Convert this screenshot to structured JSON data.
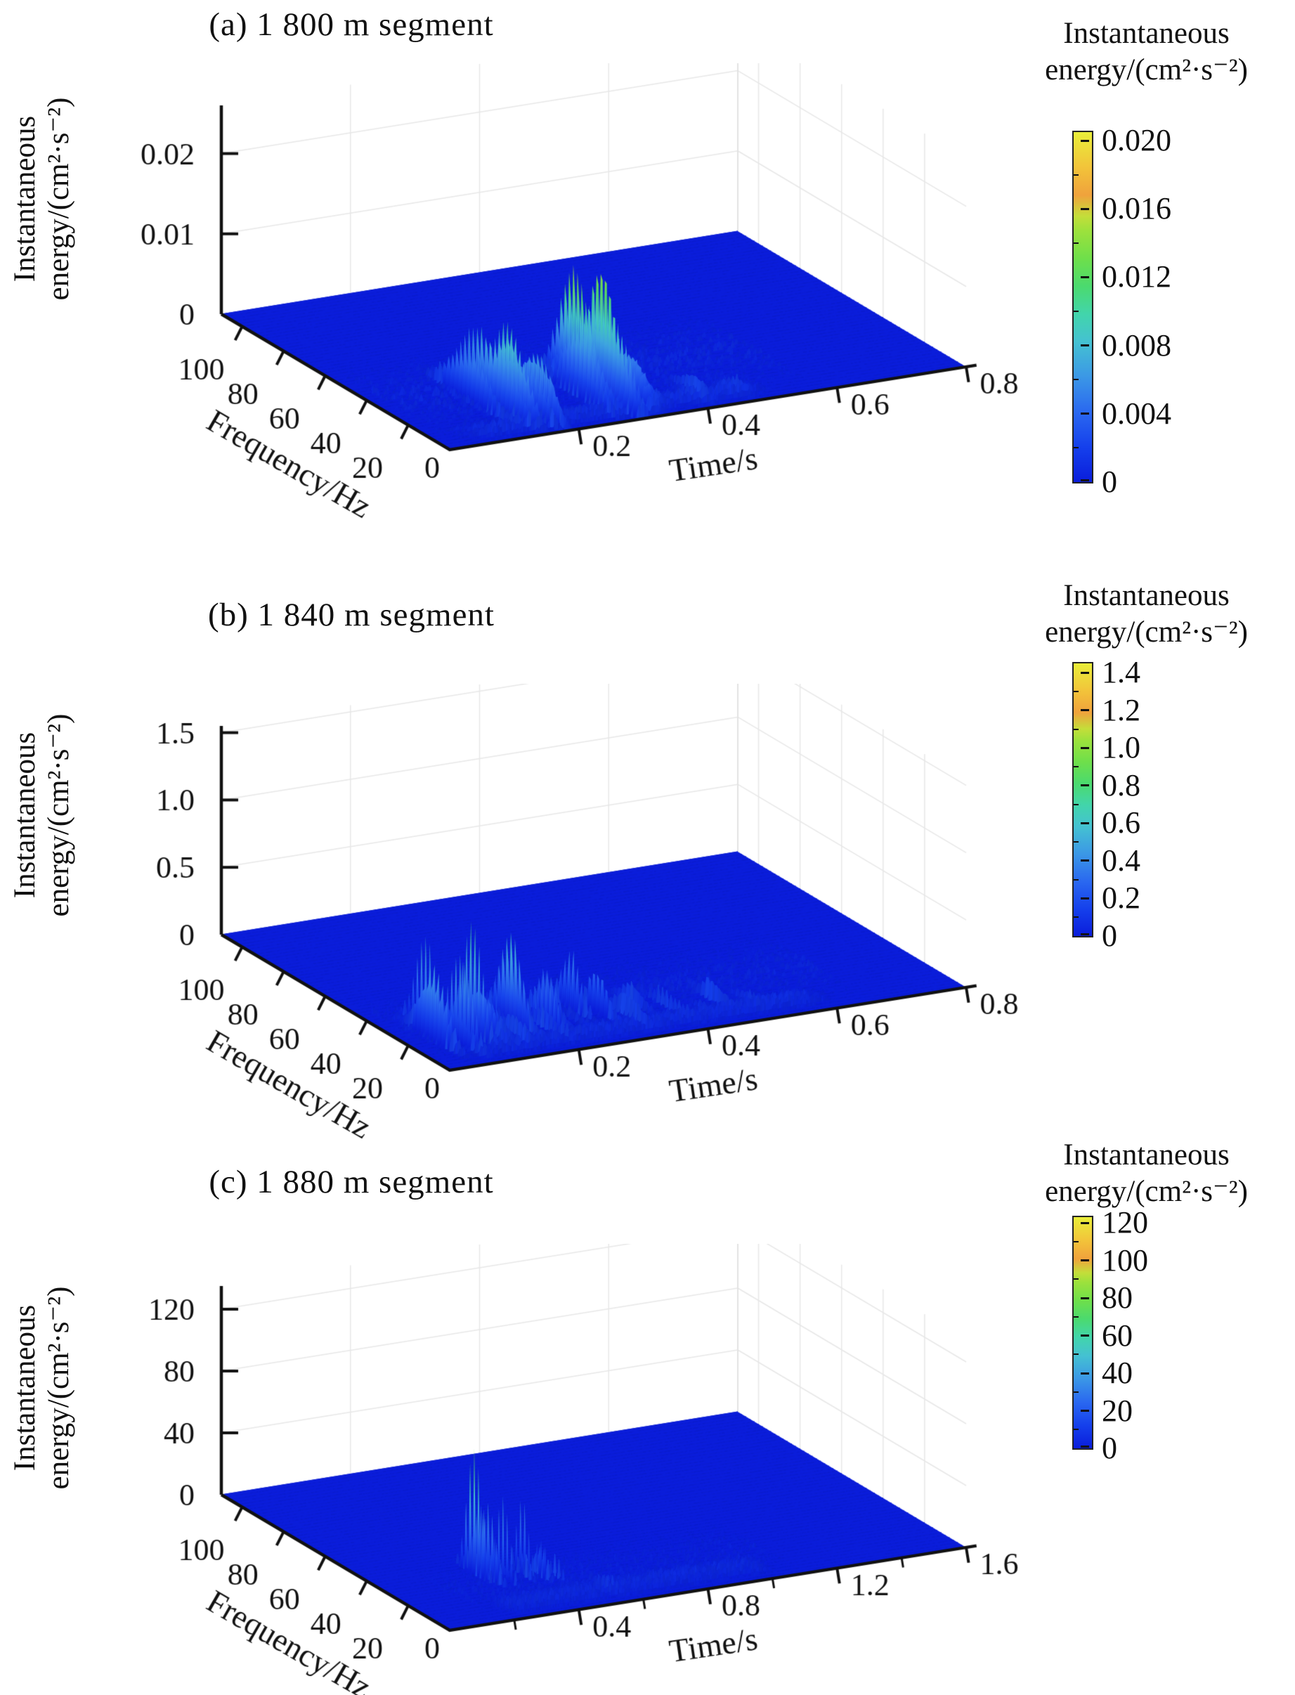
{
  "background_color": "#ffffff",
  "text_color": "#111111",
  "colormap": [
    [
      0,
      "#0a1ddb"
    ],
    [
      0.1,
      "#1540ec"
    ],
    [
      0.2,
      "#2a68f0"
    ],
    [
      0.3,
      "#3b97e6"
    ],
    [
      0.4,
      "#44c1d2"
    ],
    [
      0.48,
      "#42d5ab"
    ],
    [
      0.56,
      "#4bda6e"
    ],
    [
      0.64,
      "#6fdf4a"
    ],
    [
      0.72,
      "#9ee13c"
    ],
    [
      0.76,
      "#c4de3a"
    ],
    [
      0.82,
      "#f0a23c"
    ],
    [
      0.9,
      "#f2c43a"
    ],
    [
      1.0,
      "#e9ee39"
    ]
  ],
  "chart_data": [
    {
      "type": "surface3d",
      "title": "(a) 1 800 m segment",
      "xlabel": "Time/s",
      "ylabel": "Frequency/Hz",
      "zlabel_lines": [
        "Instantaneous",
        "energy/(cm²·s⁻²)"
      ],
      "x_max": 0.8,
      "y_max": 110,
      "z_axis_max": 0.026,
      "x_ticks": [
        {
          "v": 0,
          "label": "0"
        },
        {
          "v": 0.2,
          "label": "0.2"
        },
        {
          "v": 0.4,
          "label": "0.4"
        },
        {
          "v": 0.6,
          "label": "0.6"
        },
        {
          "v": 0.8,
          "label": "0.8"
        }
      ],
      "x_minor_step": 0,
      "y_ticks": [
        {
          "v": 20,
          "label": "20"
        },
        {
          "v": 40,
          "label": "40"
        },
        {
          "v": 60,
          "label": "60"
        },
        {
          "v": 80,
          "label": "80"
        },
        {
          "v": 100,
          "label": "100"
        }
      ],
      "z_ticks": [
        {
          "v": 0,
          "label": "0"
        },
        {
          "v": 0.01,
          "label": "0.01"
        },
        {
          "v": 0.02,
          "label": "0.02"
        }
      ],
      "colorbar": {
        "title_lines": [
          "Instantaneous",
          "energy/(cm²·s⁻²)"
        ],
        "max_value": 0.0205,
        "ticks": [
          {
            "v": 0.02,
            "label": "0.020"
          },
          {
            "v": 0.016,
            "label": "0.016"
          },
          {
            "v": 0.012,
            "label": "0.012"
          },
          {
            "v": 0.008,
            "label": "0.008"
          },
          {
            "v": 0.004,
            "label": "0.004"
          },
          {
            "v": 0,
            "label": "0"
          }
        ]
      },
      "surface": {
        "seed": 11,
        "grid_t": 270,
        "peaks": [
          [
            0.135,
            30,
            0.01,
            13,
            0.012
          ],
          [
            0.15,
            18,
            0.008,
            10,
            0.016
          ],
          [
            0.163,
            26,
            0.008,
            9,
            0.013
          ],
          [
            0.178,
            14,
            0.009,
            10,
            0.011
          ],
          [
            0.195,
            22,
            0.01,
            8,
            0.007
          ],
          [
            0.205,
            38,
            0.008,
            7,
            0.004
          ],
          [
            0.272,
            20,
            0.008,
            11,
            0.013
          ],
          [
            0.285,
            28,
            0.008,
            10,
            0.019
          ],
          [
            0.298,
            16,
            0.009,
            12,
            0.02
          ],
          [
            0.312,
            24,
            0.009,
            9,
            0.015
          ],
          [
            0.328,
            14,
            0.01,
            9,
            0.009
          ],
          [
            0.345,
            20,
            0.01,
            8,
            0.005
          ],
          [
            0.41,
            12,
            0.012,
            8,
            0.002
          ],
          [
            0.47,
            10,
            0.012,
            7,
            0.0015
          ]
        ],
        "ridge": [
          8,
          5,
          0.03,
          0.52,
          0.0012
        ],
        "noise": [
          0.0009,
          0.02,
          0.58,
          2,
          68
        ]
      }
    },
    {
      "type": "surface3d",
      "title": "(b) 1 840 m segment",
      "xlabel": "Time/s",
      "ylabel": "Frequency/Hz",
      "zlabel_lines": [
        "Instantaneous",
        "energy/(cm²·s⁻²)"
      ],
      "x_max": 0.8,
      "y_max": 110,
      "z_axis_max": 1.55,
      "x_ticks": [
        {
          "v": 0,
          "label": "0"
        },
        {
          "v": 0.2,
          "label": "0.2"
        },
        {
          "v": 0.4,
          "label": "0.4"
        },
        {
          "v": 0.6,
          "label": "0.6"
        },
        {
          "v": 0.8,
          "label": "0.8"
        }
      ],
      "x_minor_step": 0,
      "y_ticks": [
        {
          "v": 20,
          "label": "20"
        },
        {
          "v": 40,
          "label": "40"
        },
        {
          "v": 60,
          "label": "60"
        },
        {
          "v": 80,
          "label": "80"
        },
        {
          "v": 100,
          "label": "100"
        }
      ],
      "z_ticks": [
        {
          "v": 0,
          "label": "0"
        },
        {
          "v": 0.5,
          "label": "0.5"
        },
        {
          "v": 1.0,
          "label": "1.0"
        },
        {
          "v": 1.5,
          "label": "1.5"
        }
      ],
      "colorbar": {
        "title_lines": [
          "Instantaneous",
          "energy/(cm²·s⁻²)"
        ],
        "max_value": 1.45,
        "ticks": [
          {
            "v": 1.4,
            "label": "1.4"
          },
          {
            "v": 1.2,
            "label": "1.2"
          },
          {
            "v": 1.0,
            "label": "1.0"
          },
          {
            "v": 0.8,
            "label": "0.8"
          },
          {
            "v": 0.6,
            "label": "0.6"
          },
          {
            "v": 0.4,
            "label": "0.4"
          },
          {
            "v": 0.2,
            "label": "0.2"
          },
          {
            "v": 0,
            "label": "0"
          }
        ]
      },
      "surface": {
        "seed": 23,
        "grid_t": 270,
        "peaks": [
          [
            0.045,
            22,
            0.0035,
            9,
            1.18
          ],
          [
            0.058,
            30,
            0.003,
            7,
            0.92
          ],
          [
            0.072,
            18,
            0.0035,
            8,
            1.05
          ],
          [
            0.088,
            26,
            0.0035,
            7,
            1.22
          ],
          [
            0.103,
            21,
            0.003,
            7,
            0.95
          ],
          [
            0.124,
            22,
            0.008,
            9,
            1.12
          ],
          [
            0.15,
            16,
            0.004,
            7,
            0.55
          ],
          [
            0.172,
            24,
            0.005,
            8,
            0.66
          ],
          [
            0.186,
            30,
            0.004,
            7,
            0.7
          ],
          [
            0.205,
            18,
            0.004,
            7,
            0.56
          ],
          [
            0.228,
            24,
            0.004,
            7,
            0.5
          ],
          [
            0.252,
            20,
            0.004,
            7,
            0.46
          ],
          [
            0.275,
            27,
            0.004,
            7,
            0.42
          ],
          [
            0.3,
            22,
            0.004,
            7,
            0.38
          ],
          [
            0.33,
            17,
            0.005,
            8,
            0.34
          ],
          [
            0.36,
            24,
            0.005,
            7,
            0.3
          ],
          [
            0.395,
            19,
            0.005,
            8,
            0.27
          ],
          [
            0.43,
            15,
            0.005,
            7,
            0.22
          ],
          [
            0.465,
            18,
            0.006,
            7,
            0.17
          ],
          [
            0.505,
            14,
            0.006,
            7,
            0.13
          ]
        ],
        "ridge": [
          9,
          5,
          0.03,
          0.62,
          0.07
        ],
        "noise": [
          0.05,
          0.02,
          0.66,
          2,
          58
        ]
      }
    },
    {
      "type": "surface3d",
      "title": "(c) 1 880 m segment",
      "xlabel": "Time/s",
      "ylabel": "Frequency/Hz",
      "zlabel_lines": [
        "Instantaneous",
        "energy/(cm²·s⁻²)"
      ],
      "x_max": 1.6,
      "y_max": 110,
      "z_axis_max": 135,
      "x_ticks": [
        {
          "v": 0,
          "label": "0"
        },
        {
          "v": 0.4,
          "label": "0.4"
        },
        {
          "v": 0.8,
          "label": "0.8"
        },
        {
          "v": 1.2,
          "label": "1.2"
        },
        {
          "v": 1.6,
          "label": "1.6"
        }
      ],
      "x_minor_step": 0.2,
      "y_ticks": [
        {
          "v": 20,
          "label": "20"
        },
        {
          "v": 40,
          "label": "40"
        },
        {
          "v": 60,
          "label": "60"
        },
        {
          "v": 80,
          "label": "80"
        },
        {
          "v": 100,
          "label": "100"
        }
      ],
      "z_ticks": [
        {
          "v": 0,
          "label": "0"
        },
        {
          "v": 40,
          "label": "40"
        },
        {
          "v": 80,
          "label": "80"
        },
        {
          "v": 120,
          "label": "120"
        }
      ],
      "colorbar": {
        "title_lines": [
          "Instantaneous",
          "energy/(cm²·s⁻²)"
        ],
        "max_value": 123,
        "ticks": [
          {
            "v": 120,
            "label": "120"
          },
          {
            "v": 100,
            "label": "100"
          },
          {
            "v": 80,
            "label": "80"
          },
          {
            "v": 60,
            "label": "60"
          },
          {
            "v": 40,
            "label": "40"
          },
          {
            "v": 20,
            "label": "20"
          },
          {
            "v": 0,
            "label": "0"
          }
        ]
      },
      "surface": {
        "seed": 37,
        "grid_t": 380,
        "peaks": [
          [
            0.295,
            34,
            0.0035,
            5,
            105
          ],
          [
            0.312,
            30,
            0.0035,
            5,
            128
          ],
          [
            0.328,
            36,
            0.003,
            4.5,
            118
          ],
          [
            0.345,
            28,
            0.003,
            4.5,
            95
          ],
          [
            0.362,
            33,
            0.003,
            4.5,
            80
          ],
          [
            0.382,
            30,
            0.0035,
            4.5,
            108
          ],
          [
            0.405,
            27,
            0.003,
            4.5,
            65
          ],
          [
            0.425,
            31,
            0.003,
            4,
            48
          ],
          [
            0.445,
            25,
            0.003,
            4,
            34
          ],
          [
            0.462,
            28,
            0.0025,
            4,
            26
          ],
          [
            0.48,
            23,
            0.0025,
            4,
            18
          ],
          [
            0.505,
            20,
            0.003,
            4,
            12
          ],
          [
            0.56,
            12,
            0.012,
            7,
            9
          ]
        ],
        "ridge": [
          10,
          6,
          0.2,
          1.05,
          5
        ],
        "noise": [
          3,
          0.15,
          1.1,
          2,
          45
        ]
      }
    }
  ]
}
